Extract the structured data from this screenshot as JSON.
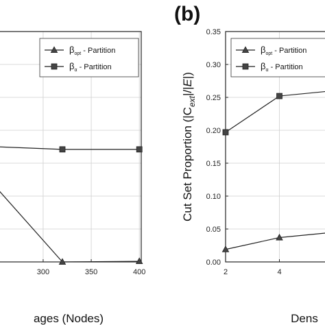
{
  "chart_data": [
    {
      "type": "line",
      "xlabel": "ages (Nodes)",
      "ylabel": "",
      "title": "",
      "xlim": [
        248,
        402
      ],
      "ylim": [
        0,
        0.35
      ],
      "x_ticks": [
        "300",
        "350",
        "400"
      ],
      "x_tick_values": [
        300,
        350,
        400
      ],
      "legend": {
        "position": "top-right"
      },
      "series": [
        {
          "name": "β - Partition",
          "base": "β",
          "sub": "opt",
          "marker": "triangle",
          "x": [
            250,
            320,
            400
          ],
          "y": [
            0.115,
            0.0,
            0.001
          ]
        },
        {
          "name": "β - Partition",
          "base": "β",
          "sub": "α",
          "marker": "square",
          "x": [
            250,
            320,
            400
          ],
          "y": [
            0.175,
            0.171,
            0.171
          ]
        }
      ]
    },
    {
      "type": "line",
      "panel_label": "(b)",
      "xlabel": "Dens",
      "ylabel": "Cut Set Proportion (|C_ext|/|E|)",
      "ylabel_parts": [
        "Cut Set Proportion (|C",
        "ext",
        "|/|",
        "E",
        "|)"
      ],
      "title": "",
      "xlim": [
        2,
        6
      ],
      "ylim": [
        0,
        0.35
      ],
      "y_ticks": [
        "0.00",
        "0.05",
        "0.10",
        "0.15",
        "0.20",
        "0.25",
        "0.30",
        "0.35"
      ],
      "y_tick_values": [
        0,
        0.05,
        0.1,
        0.15,
        0.2,
        0.25,
        0.3,
        0.35
      ],
      "x_ticks": [
        "2",
        "4"
      ],
      "x_tick_values": [
        2,
        4
      ],
      "legend": {
        "position": "top-right"
      },
      "series": [
        {
          "name": "β - Partition",
          "base": "β",
          "sub": "opt",
          "marker": "triangle",
          "x": [
            2,
            4,
            6
          ],
          "y": [
            0.019,
            0.037,
            0.045
          ]
        },
        {
          "name": "β - Partition",
          "base": "β",
          "sub": "α",
          "marker": "square",
          "x": [
            2,
            4,
            6
          ],
          "y": [
            0.197,
            0.252,
            0.26
          ]
        }
      ]
    }
  ],
  "legend_suffix": " - Partition",
  "colors": {
    "line": "#222222",
    "marker": "#444444",
    "grid": "#cfcfcf",
    "axis": "#222222"
  }
}
